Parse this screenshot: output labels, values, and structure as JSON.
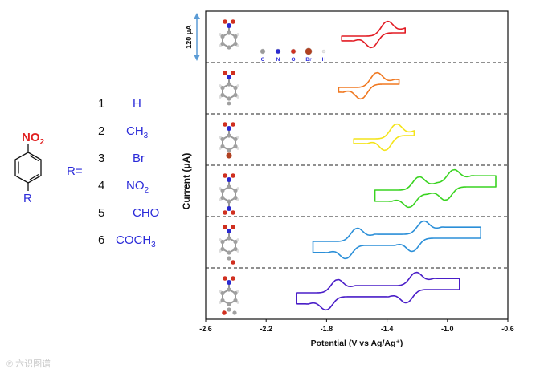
{
  "scheme": {
    "nitro_label": "NO",
    "nitro_sub": "2",
    "r_label": "R",
    "r_equals": "R=",
    "substituents": [
      {
        "num": "1",
        "main": "H",
        "sub": "",
        "tail": ""
      },
      {
        "num": "2",
        "main": "CH",
        "sub": "3",
        "tail": ""
      },
      {
        "num": "3",
        "main": "Br",
        "sub": "",
        "tail": ""
      },
      {
        "num": "4",
        "main": "NO",
        "sub": "2",
        "tail": ""
      },
      {
        "num": "5",
        "main": "CHO",
        "sub": "",
        "tail": ""
      },
      {
        "num": "6",
        "main": "COCH",
        "sub": "3",
        "tail": ""
      }
    ]
  },
  "legend_atoms": [
    {
      "label": "C",
      "color": "#9a9a9a"
    },
    {
      "label": "N",
      "color": "#2a2ad0"
    },
    {
      "label": "O",
      "color": "#d03020"
    },
    {
      "label": "Br",
      "color": "#b04020"
    },
    {
      "label": "H",
      "color": "#e8e8e8"
    }
  ],
  "scale_bar_label": "120 μA",
  "watermark": "六识图谱",
  "chart_data": {
    "type": "line",
    "title": "",
    "xlabel": "Potential (V vs Ag/Ag⁺)",
    "ylabel": "Current (μA)",
    "xlim": [
      -2.6,
      -0.6
    ],
    "xticks": [
      -2.6,
      -2.2,
      -1.8,
      -1.4,
      -1.0,
      -0.6
    ],
    "xtick_labels": [
      "-2.6",
      "-2.2",
      "-1.8",
      "-1.4",
      "-1.0",
      "-0.6"
    ],
    "scale_bar_uA": 120,
    "grid": false,
    "series": [
      {
        "name": "1 (R = H)",
        "color": "#e21b23",
        "peaks": [
          {
            "Epc": -1.5,
            "Epa": -1.4
          }
        ],
        "start": -1.7,
        "end": -1.28
      },
      {
        "name": "2 (R = CH3)",
        "color": "#f07820",
        "peaks": [
          {
            "Epc": -1.57,
            "Epa": -1.47
          }
        ],
        "start": -1.72,
        "end": -1.32
      },
      {
        "name": "3 (R = Br)",
        "color": "#f4e41a",
        "peaks": [
          {
            "Epc": -1.41,
            "Epa": -1.34
          }
        ],
        "start": -1.62,
        "end": -1.22
      },
      {
        "name": "4 (R = NO2)",
        "color": "#39d320",
        "peaks": [
          {
            "Epc": -1.25,
            "Epa": -1.19
          },
          {
            "Epc": -1.01,
            "Epa": -0.96
          }
        ],
        "start": -1.48,
        "end": -0.68
      },
      {
        "name": "5 (R = CHO)",
        "color": "#2b8fd8",
        "peaks": [
          {
            "Epc": -1.67,
            "Epa": -1.6
          },
          {
            "Epc": -1.23,
            "Epa": -1.16
          }
        ],
        "start": -1.89,
        "end": -0.78
      },
      {
        "name": "6 (R = COCH3)",
        "color": "#4a1ec8",
        "peaks": [
          {
            "Epc": -1.8,
            "Epa": -1.73
          },
          {
            "Epc": -1.27,
            "Epa": -1.21
          }
        ],
        "start": -2.0,
        "end": -0.92
      }
    ]
  }
}
